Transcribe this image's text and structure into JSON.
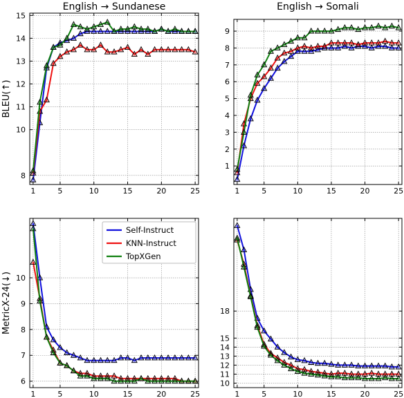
{
  "chart_data": [
    {
      "type": "line",
      "title": "English → Sundanese",
      "ylabel": "BLEU(↑)",
      "xlim": [
        0.5,
        25.5
      ],
      "ylim": [
        7.6,
        15.1
      ],
      "xticks": [
        1,
        5,
        10,
        15,
        20,
        25
      ],
      "yticks": [
        8,
        10,
        11,
        12,
        13,
        14,
        15
      ],
      "grid": true,
      "legend": null,
      "x": [
        1,
        2,
        3,
        4,
        5,
        6,
        7,
        8,
        9,
        10,
        11,
        12,
        13,
        14,
        15,
        16,
        17,
        18,
        19,
        20,
        21,
        22,
        23,
        24,
        25
      ],
      "series": [
        {
          "name": "Self-Instruct",
          "color": "#1010dd",
          "values": [
            7.8,
            10.3,
            12.7,
            13.6,
            13.8,
            13.9,
            14.0,
            14.2,
            14.3,
            14.3,
            14.3,
            14.3,
            14.3,
            14.3,
            14.3,
            14.3,
            14.3,
            14.3,
            14.3,
            14.4,
            14.3,
            14.3,
            14.3,
            14.3,
            14.3
          ]
        },
        {
          "name": "KNN-Instruct",
          "color": "#ee1111",
          "values": [
            8.1,
            10.8,
            11.3,
            12.9,
            13.2,
            13.4,
            13.5,
            13.7,
            13.5,
            13.5,
            13.7,
            13.4,
            13.4,
            13.5,
            13.6,
            13.3,
            13.5,
            13.3,
            13.5,
            13.5,
            13.5,
            13.5,
            13.5,
            13.5,
            13.4
          ]
        },
        {
          "name": "TopXGen",
          "color": "#0f7f0f",
          "values": [
            8.2,
            11.2,
            12.8,
            13.6,
            13.7,
            14.0,
            14.6,
            14.5,
            14.4,
            14.5,
            14.6,
            14.7,
            14.3,
            14.4,
            14.4,
            14.5,
            14.4,
            14.4,
            14.3,
            14.4,
            14.3,
            14.4,
            14.3,
            14.3,
            14.3
          ]
        }
      ]
    },
    {
      "type": "line",
      "title": "English → Somali",
      "ylabel": "",
      "xlim": [
        0.5,
        25.5
      ],
      "ylim": [
        -0.1,
        9.7
      ],
      "xticks": [
        1,
        5,
        10,
        15,
        20,
        25
      ],
      "yticks": [
        1,
        2,
        3,
        4,
        5,
        6,
        7,
        8,
        9
      ],
      "grid": true,
      "legend": null,
      "x": [
        1,
        2,
        3,
        4,
        5,
        6,
        7,
        8,
        9,
        10,
        11,
        12,
        13,
        14,
        15,
        16,
        17,
        18,
        19,
        20,
        21,
        22,
        23,
        24,
        25
      ],
      "series": [
        {
          "name": "Self-Instruct",
          "color": "#1010dd",
          "values": [
            0.2,
            2.2,
            3.8,
            4.9,
            5.6,
            6.2,
            6.8,
            7.2,
            7.5,
            7.8,
            7.8,
            7.8,
            7.9,
            8.0,
            8.0,
            8.0,
            8.1,
            8.0,
            8.1,
            8.1,
            8.0,
            8.1,
            8.1,
            8.0,
            8.0
          ]
        },
        {
          "name": "KNN-Instruct",
          "color": "#ee1111",
          "values": [
            0.6,
            3.5,
            5.0,
            5.9,
            6.3,
            6.8,
            7.4,
            7.7,
            7.8,
            8.0,
            8.1,
            8.0,
            8.1,
            8.1,
            8.3,
            8.3,
            8.3,
            8.3,
            8.2,
            8.3,
            8.3,
            8.3,
            8.4,
            8.3,
            8.3
          ]
        },
        {
          "name": "TopXGen",
          "color": "#0f7f0f",
          "values": [
            0.8,
            3.0,
            5.2,
            6.4,
            7.0,
            7.8,
            8.0,
            8.2,
            8.4,
            8.6,
            8.6,
            9.0,
            9.0,
            9.0,
            9.0,
            9.1,
            9.2,
            9.2,
            9.1,
            9.2,
            9.2,
            9.3,
            9.2,
            9.3,
            9.2
          ]
        }
      ]
    },
    {
      "type": "line",
      "title": "",
      "ylabel": "MetricX-24(↓)",
      "xlim": [
        0.5,
        25.5
      ],
      "ylim": [
        5.75,
        12.3
      ],
      "xticks": [
        1,
        5,
        10,
        15,
        20,
        25
      ],
      "yticks": [
        6,
        7,
        8,
        9,
        10
      ],
      "grid": true,
      "legend": "top-right",
      "x": [
        1,
        2,
        3,
        4,
        5,
        6,
        7,
        8,
        9,
        10,
        11,
        12,
        13,
        14,
        15,
        16,
        17,
        18,
        19,
        20,
        21,
        22,
        23,
        24,
        25
      ],
      "series": [
        {
          "name": "Self-Instruct",
          "color": "#1010dd",
          "values": [
            12.1,
            10.0,
            8.1,
            7.6,
            7.3,
            7.1,
            7.0,
            6.9,
            6.8,
            6.8,
            6.8,
            6.8,
            6.8,
            6.9,
            6.9,
            6.8,
            6.9,
            6.9,
            6.9,
            6.9,
            6.9,
            6.9,
            6.9,
            6.9,
            6.9
          ]
        },
        {
          "name": "KNN-Instruct",
          "color": "#ee1111",
          "values": [
            10.6,
            9.2,
            7.7,
            7.2,
            6.7,
            6.6,
            6.4,
            6.3,
            6.3,
            6.2,
            6.2,
            6.2,
            6.2,
            6.1,
            6.1,
            6.1,
            6.1,
            6.1,
            6.1,
            6.1,
            6.1,
            6.1,
            6.0,
            6.0,
            6.0
          ]
        },
        {
          "name": "TopXGen",
          "color": "#0f7f0f",
          "values": [
            11.9,
            9.1,
            7.7,
            7.1,
            6.7,
            6.6,
            6.4,
            6.2,
            6.2,
            6.1,
            6.1,
            6.1,
            6.0,
            6.0,
            6.0,
            6.0,
            6.1,
            6.0,
            6.0,
            6.0,
            6.0,
            6.0,
            6.0,
            6.0,
            6.0
          ]
        }
      ]
    },
    {
      "type": "line",
      "title": "",
      "ylabel": "",
      "xlim": [
        0.5,
        25.5
      ],
      "ylim": [
        9.5,
        28.3
      ],
      "xticks": [
        1,
        5,
        10,
        15,
        20,
        25
      ],
      "yticks": [
        10,
        11,
        12,
        13,
        14,
        15,
        18
      ],
      "grid": true,
      "legend": null,
      "x": [
        1,
        2,
        3,
        4,
        5,
        6,
        7,
        8,
        9,
        10,
        11,
        12,
        13,
        14,
        15,
        16,
        17,
        18,
        19,
        20,
        21,
        22,
        23,
        24,
        25
      ],
      "series": [
        {
          "name": "Self-Instruct",
          "color": "#1010dd",
          "values": [
            27.5,
            24.8,
            20.4,
            17.2,
            15.8,
            14.9,
            14.0,
            13.4,
            12.9,
            12.6,
            12.5,
            12.3,
            12.2,
            12.2,
            12.1,
            12.0,
            12.0,
            12.0,
            11.9,
            11.9,
            11.9,
            11.9,
            11.9,
            11.8,
            11.8
          ]
        },
        {
          "name": "KNN-Instruct",
          "color": "#ee1111",
          "values": [
            25.9,
            23.2,
            19.7,
            16.4,
            14.3,
            13.3,
            12.8,
            12.3,
            12.0,
            11.6,
            11.5,
            11.3,
            11.2,
            11.1,
            11.0,
            11.1,
            11.1,
            11.0,
            11.0,
            11.0,
            11.1,
            11.0,
            11.0,
            11.0,
            11.0
          ]
        },
        {
          "name": "TopXGen",
          "color": "#0f7f0f",
          "values": [
            26.1,
            22.9,
            19.6,
            16.2,
            14.1,
            13.1,
            12.5,
            12.0,
            11.6,
            11.3,
            11.1,
            11.0,
            10.9,
            10.8,
            10.7,
            10.7,
            10.6,
            10.6,
            10.6,
            10.5,
            10.5,
            10.5,
            10.6,
            10.5,
            10.5
          ]
        }
      ]
    }
  ]
}
